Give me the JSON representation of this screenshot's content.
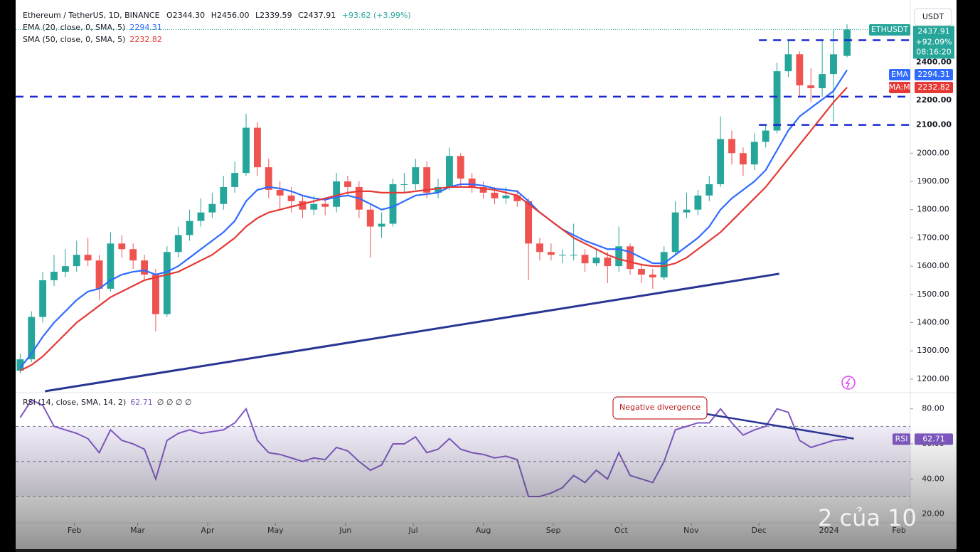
{
  "header": {
    "symbol": "Ethereum / TetherUS, 1D, BINANCE",
    "ohlc": [
      "O2344.30",
      "H2456.00",
      "L2339.59",
      "C2437.91"
    ],
    "change": "+93.62 (+3.99%)"
  },
  "currency": "USDT",
  "watermark": "2 của 10",
  "chart_data": [
    {
      "type": "candlestick",
      "symbol_label": "ETHUSDT",
      "price_change": "+92.09%",
      "countdown": "08:16:20",
      "up_color": "#26a69a",
      "down_color": "#ef5350",
      "x": [
        0,
        5,
        10,
        15,
        20,
        25,
        30,
        35,
        40,
        45,
        50,
        55,
        60,
        65,
        70,
        75,
        80,
        85,
        90,
        95,
        100,
        105,
        110,
        115,
        120,
        125,
        130,
        135,
        140,
        145,
        150,
        155,
        160,
        165,
        170,
        175,
        180,
        185,
        190,
        195,
        200,
        205,
        210,
        215,
        220,
        225,
        230,
        235,
        240,
        245,
        250,
        255,
        260,
        265,
        270,
        275,
        280,
        285,
        290,
        295,
        300,
        305,
        310,
        315,
        320,
        325,
        330,
        335,
        340,
        345,
        350,
        355,
        360,
        366
      ],
      "open": [
        1230,
        1270,
        1420,
        1550,
        1580,
        1600,
        1640,
        1620,
        1520,
        1680,
        1660,
        1620,
        1570,
        1430,
        1650,
        1710,
        1760,
        1790,
        1820,
        1880,
        1930,
        2090,
        1950,
        1870,
        1850,
        1830,
        1800,
        1820,
        1810,
        1900,
        1880,
        1800,
        1740,
        1750,
        1890,
        1890,
        1950,
        1860,
        1880,
        1990,
        1910,
        1880,
        1860,
        1840,
        1850,
        1830,
        1680,
        1650,
        1640,
        1640,
        1640,
        1610,
        1630,
        1600,
        1670,
        1590,
        1570,
        1560,
        1650,
        1790,
        1800,
        1850,
        1890,
        2050,
        2000,
        1960,
        2040,
        2080,
        2290,
        2350,
        2240,
        2230,
        2280,
        2344.3
      ],
      "high": [
        1290,
        1440,
        1580,
        1640,
        1660,
        1690,
        1700,
        1640,
        1720,
        1710,
        1680,
        1640,
        1590,
        1670,
        1740,
        1800,
        1840,
        1860,
        1920,
        1970,
        2140,
        2110,
        1980,
        1900,
        1880,
        1850,
        1850,
        1840,
        1930,
        1920,
        1900,
        1820,
        1790,
        1910,
        1930,
        1980,
        1970,
        1910,
        2020,
        2000,
        1930,
        1900,
        1880,
        1880,
        1870,
        1840,
        1700,
        1680,
        1660,
        1750,
        1660,
        1660,
        1650,
        1740,
        1680,
        1610,
        1590,
        1670,
        1830,
        1860,
        1870,
        1920,
        2130,
        2080,
        2020,
        2070,
        2100,
        2320,
        2400,
        2360,
        2300,
        2400,
        2440,
        2456.0
      ],
      "low": [
        1220,
        1260,
        1400,
        1530,
        1560,
        1580,
        1600,
        1480,
        1510,
        1630,
        1590,
        1550,
        1370,
        1420,
        1630,
        1690,
        1740,
        1770,
        1800,
        1860,
        1920,
        1920,
        1840,
        1800,
        1790,
        1770,
        1780,
        1780,
        1790,
        1850,
        1770,
        1630,
        1700,
        1740,
        1860,
        1870,
        1840,
        1840,
        1870,
        1880,
        1860,
        1840,
        1820,
        1820,
        1810,
        1550,
        1620,
        1620,
        1610,
        1620,
        1580,
        1600,
        1540,
        1580,
        1570,
        1540,
        1520,
        1550,
        1640,
        1770,
        1780,
        1830,
        1880,
        1960,
        1920,
        1940,
        2020,
        2070,
        2270,
        2200,
        2180,
        2200,
        2110,
        2339.59
      ],
      "close": [
        1270,
        1420,
        1550,
        1580,
        1600,
        1640,
        1620,
        1520,
        1680,
        1660,
        1620,
        1570,
        1430,
        1650,
        1710,
        1760,
        1790,
        1820,
        1880,
        1930,
        2090,
        1950,
        1870,
        1850,
        1830,
        1800,
        1820,
        1810,
        1900,
        1880,
        1800,
        1740,
        1750,
        1890,
        1890,
        1950,
        1860,
        1880,
        1990,
        1910,
        1880,
        1860,
        1840,
        1850,
        1830,
        1680,
        1650,
        1640,
        1640,
        1640,
        1610,
        1630,
        1600,
        1670,
        1590,
        1570,
        1560,
        1650,
        1790,
        1800,
        1850,
        1890,
        2050,
        2000,
        1960,
        2040,
        2080,
        2290,
        2350,
        2240,
        2230,
        2280,
        2350,
        2437.91
      ],
      "series": [
        {
          "name": "EMA (20, close, 0, SMA, 5)",
          "short": "EMA",
          "color": "#2f6bff",
          "values": [
            1240,
            1290,
            1350,
            1400,
            1440,
            1480,
            1510,
            1520,
            1550,
            1570,
            1580,
            1585,
            1570,
            1580,
            1600,
            1630,
            1660,
            1690,
            1720,
            1760,
            1830,
            1870,
            1880,
            1875,
            1865,
            1850,
            1840,
            1835,
            1845,
            1850,
            1840,
            1820,
            1800,
            1810,
            1830,
            1850,
            1855,
            1860,
            1880,
            1890,
            1890,
            1885,
            1875,
            1870,
            1865,
            1830,
            1790,
            1760,
            1730,
            1710,
            1690,
            1675,
            1660,
            1660,
            1650,
            1630,
            1610,
            1610,
            1640,
            1670,
            1700,
            1740,
            1800,
            1840,
            1870,
            1900,
            1940,
            2010,
            2080,
            2130,
            2160,
            2190,
            2220,
            2294.31
          ]
        },
        {
          "name": "SMA (50, close, 0, SMA, 5)",
          "short": "SMA:MA",
          "color": "#e53935",
          "values": [
            1230,
            1250,
            1280,
            1320,
            1360,
            1400,
            1430,
            1460,
            1490,
            1510,
            1530,
            1550,
            1560,
            1570,
            1580,
            1600,
            1620,
            1640,
            1670,
            1700,
            1740,
            1770,
            1790,
            1800,
            1810,
            1820,
            1830,
            1840,
            1850,
            1860,
            1865,
            1865,
            1860,
            1860,
            1860,
            1865,
            1870,
            1875,
            1880,
            1880,
            1880,
            1875,
            1870,
            1860,
            1850,
            1820,
            1790,
            1760,
            1730,
            1700,
            1680,
            1660,
            1640,
            1625,
            1615,
            1605,
            1600,
            1600,
            1610,
            1630,
            1660,
            1690,
            1720,
            1760,
            1800,
            1840,
            1880,
            1930,
            1980,
            2030,
            2080,
            2130,
            2180,
            2232.82
          ]
        }
      ],
      "xlim": [
        -2,
        394
      ],
      "xticks": [
        {
          "value": 24,
          "label": "Feb"
        },
        {
          "value": 52,
          "label": "Mar"
        },
        {
          "value": 83,
          "label": "Apr"
        },
        {
          "value": 113,
          "label": "May"
        },
        {
          "value": 144,
          "label": "Jun"
        },
        {
          "value": 174,
          "label": "Jul"
        },
        {
          "value": 205,
          "label": "Aug"
        },
        {
          "value": 236,
          "label": "Sep"
        },
        {
          "value": 266,
          "label": "Oct"
        },
        {
          "value": 297,
          "label": "Nov"
        },
        {
          "value": 327,
          "label": "Dec"
        },
        {
          "value": 358,
          "label": "2024"
        },
        {
          "value": 389,
          "label": "Feb"
        }
      ],
      "ylim": [
        1157,
        2517
      ],
      "yticks": [
        {
          "value": 1200,
          "label": "1200.00"
        },
        {
          "value": 1300,
          "label": "1300.00"
        },
        {
          "value": 1400,
          "label": "1400.00"
        },
        {
          "value": 1500,
          "label": "1500.00"
        },
        {
          "value": 1600,
          "label": "1600.00"
        },
        {
          "value": 1700,
          "label": "1700.00"
        },
        {
          "value": 1800,
          "label": "1800.00"
        },
        {
          "value": 1900,
          "label": "1900.00"
        },
        {
          "value": 2000,
          "label": "2000.00"
        }
      ],
      "levels": [
        {
          "value": 2400,
          "label": "2400.00",
          "x_start": 327
        },
        {
          "value": 2200,
          "label": "2200.00",
          "x_start": -2
        },
        {
          "value": 2100,
          "label": "2100.00",
          "x_start": 327
        }
      ],
      "trendline": {
        "x": [
          11,
          336
        ],
        "y": [
          1157,
          1573
        ]
      }
    },
    {
      "type": "line",
      "series": [
        {
          "name": "RSI (14, close, SMA, 14, 2)",
          "short": "RSI",
          "color": "#7e57c2",
          "values": [
            75,
            85,
            82,
            70,
            68,
            66,
            63,
            55,
            68,
            62,
            60,
            57,
            40,
            62,
            66,
            68,
            66,
            67,
            68,
            72,
            80,
            62,
            55,
            54,
            52,
            50,
            52,
            51,
            58,
            56,
            50,
            45,
            48,
            60,
            60,
            64,
            55,
            57,
            63,
            57,
            55,
            54,
            52,
            53,
            51,
            30,
            30,
            32,
            35,
            42,
            38,
            45,
            40,
            55,
            42,
            40,
            38,
            50,
            68,
            70,
            72,
            72,
            80,
            72,
            65,
            68,
            70,
            80,
            78,
            62,
            58,
            60,
            62,
            62.71
          ]
        }
      ],
      "extra": "∅ ∅ ∅ ∅",
      "ylim": [
        15,
        88
      ],
      "yticks": [
        {
          "value": 80,
          "label": "80.00"
        },
        {
          "value": 60,
          "label": "60.00"
        },
        {
          "value": 40,
          "label": "40.00"
        },
        {
          "value": 20,
          "label": "20.00"
        }
      ],
      "bands": [
        70,
        50,
        30
      ],
      "annotation": "Negative divergence",
      "trendline": {
        "x": [
          304,
          369
        ],
        "y": [
          77,
          63
        ]
      }
    }
  ]
}
